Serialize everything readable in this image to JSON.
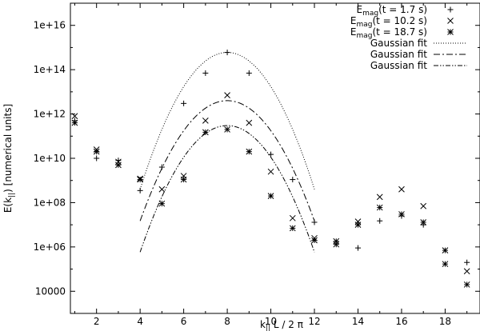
{
  "chart_data": {
    "type": "scatter",
    "title": "",
    "xlabel": "k|| L / 2 π",
    "xlabel_parts": {
      "base": "k",
      "sub": "||",
      "rest": " L / 2 π"
    },
    "ylabel": "E(k||) [numerical units]",
    "ylabel_parts": {
      "prefix": "E(k",
      "sub": "||",
      "suffix": ") [numerical units]"
    },
    "x_range": [
      0.8,
      19.6
    ],
    "y_range": [
      1000,
      1e+17
    ],
    "y_scale": "log",
    "x_ticks": [
      2,
      4,
      6,
      8,
      10,
      12,
      14,
      16,
      18
    ],
    "y_ticks": [
      {
        "value": 10000,
        "label": "10000"
      },
      {
        "value": 1000000,
        "label": "1e+06"
      },
      {
        "value": 100000000,
        "label": "1e+08"
      },
      {
        "value": 10000000000,
        "label": "1e+10"
      },
      {
        "value": 1000000000000,
        "label": "1e+12"
      },
      {
        "value": 100000000000000,
        "label": "1e+14"
      },
      {
        "value": 10000000000000000,
        "label": "1e+16"
      }
    ],
    "grid": false,
    "legend_position": "top-right",
    "series": [
      {
        "name": "Emag(t = 1.7 s)",
        "label_parts": {
          "base": "E",
          "sub": "mag",
          "rest": "(t = 1.7 s)"
        },
        "marker": "plus",
        "x": [
          1,
          2,
          3,
          4,
          5,
          6,
          7,
          8,
          9,
          10,
          11,
          12,
          13,
          14,
          15,
          16,
          17,
          18,
          19
        ],
        "y": [
          500000000000.0,
          10000000000.0,
          8000000000.0,
          350000000.0,
          4000000000.0,
          3000000000000.0,
          70000000000000.0,
          600000000000000.0,
          70000000000000.0,
          15000000000.0,
          1100000000.0,
          13000000.0,
          1800000.0,
          900000.0,
          15000000.0,
          25000000.0,
          10000000.0,
          700000.0,
          200000.0
        ]
      },
      {
        "name": "Emag(t = 10.2 s)",
        "label_parts": {
          "base": "E",
          "sub": "mag",
          "rest": "(t = 10.2 s)"
        },
        "marker": "cross",
        "x": [
          1,
          2,
          3,
          4,
          5,
          6,
          7,
          8,
          9,
          10,
          11,
          12,
          13,
          14,
          15,
          16,
          17,
          18,
          19
        ],
        "y": [
          800000000000.0,
          25000000000.0,
          7000000000.0,
          1200000000.0,
          400000000.0,
          1600000000.0,
          500000000000.0,
          7000000000000.0,
          400000000000.0,
          2500000000.0,
          20000000.0,
          2500000.0,
          1800000.0,
          14000000.0,
          180000000.0,
          400000000.0,
          70000000.0,
          700000.0,
          80000.0
        ]
      },
      {
        "name": "Emag(t = 18.7 s)",
        "label_parts": {
          "base": "E",
          "sub": "mag",
          "rest": "(t = 18.7 s)"
        },
        "marker": "star",
        "x": [
          1,
          2,
          3,
          4,
          5,
          6,
          7,
          8,
          9,
          10,
          11,
          12,
          13,
          14,
          15,
          16,
          17,
          18,
          19
        ],
        "y": [
          400000000000.0,
          20000000000.0,
          5000000000.0,
          1100000000.0,
          90000000.0,
          1100000000.0,
          150000000000.0,
          200000000000.0,
          20000000000.0,
          200000000.0,
          7000000.0,
          2000000.0,
          1300000.0,
          10000000.0,
          60000000.0,
          30000000.0,
          13000000.0,
          170000.0,
          20000.0
        ]
      }
    ],
    "fits": [
      {
        "name": "Gaussian fit",
        "dash": "dotted",
        "peak_x": 8,
        "peak_y": 600000000000000.0,
        "sigma": 0.75
      },
      {
        "name": "Gaussian fit",
        "dash": "dashdot",
        "peak_x": 8,
        "peak_y": 4000000000000.0,
        "sigma": 0.8
      },
      {
        "name": "Gaussian fit",
        "dash": "dashdotdot",
        "peak_x": 8,
        "peak_y": 300000000000.0,
        "sigma": 0.78
      }
    ]
  }
}
